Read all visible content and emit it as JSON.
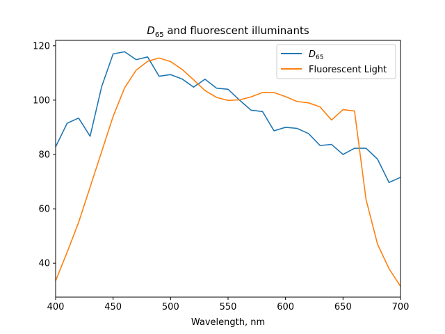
{
  "chart_data": {
    "type": "line",
    "title": {
      "symbol": "D",
      "subscript": "65",
      "rest": " and fluorescent illuminants"
    },
    "xlabel": "Wavelength, nm",
    "ylabel": "",
    "xlim": [
      400,
      700
    ],
    "ylim": [
      27.5,
      122.0
    ],
    "xticks": [
      400,
      450,
      500,
      550,
      600,
      650,
      700
    ],
    "yticks": [
      40,
      60,
      80,
      100,
      120
    ],
    "grid": false,
    "legend_position": "top-right",
    "x": [
      400,
      410,
      420,
      430,
      440,
      450,
      460,
      470,
      480,
      490,
      500,
      510,
      520,
      530,
      540,
      550,
      560,
      570,
      580,
      590,
      600,
      610,
      620,
      630,
      640,
      650,
      660,
      670,
      680,
      690,
      700
    ],
    "series": [
      {
        "name": "D65",
        "name_symbol": "D",
        "name_subscript": "65",
        "color": "#1f77b4",
        "values": [
          82.8,
          91.5,
          93.4,
          86.7,
          104.9,
          117.0,
          117.8,
          114.9,
          115.9,
          108.8,
          109.4,
          107.8,
          104.8,
          107.7,
          104.4,
          104.0,
          100.0,
          96.3,
          95.8,
          88.7,
          90.0,
          89.6,
          87.7,
          83.3,
          83.7,
          80.0,
          82.3,
          82.3,
          78.3,
          69.7,
          71.6
        ]
      },
      {
        "name": "Fluorescent Light",
        "color": "#ff7f0e",
        "values": [
          33.5,
          44.0,
          55.0,
          68.0,
          81.0,
          94.0,
          104.5,
          111.0,
          114.3,
          115.5,
          114.2,
          111.3,
          107.5,
          103.5,
          101.0,
          99.9,
          100.1,
          101.2,
          102.8,
          102.8,
          101.3,
          99.5,
          99.0,
          97.5,
          92.7,
          96.5,
          96.0,
          63.5,
          47.0,
          38.0,
          31.5
        ]
      }
    ]
  }
}
